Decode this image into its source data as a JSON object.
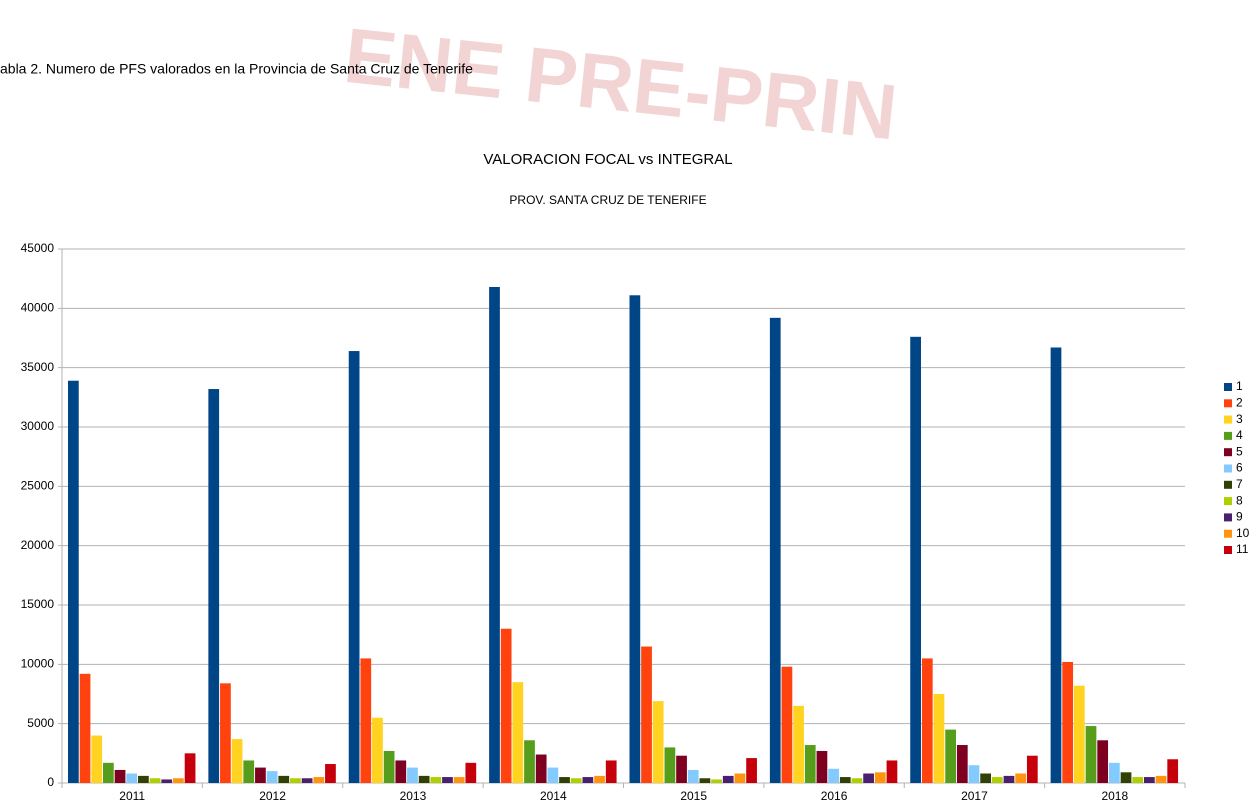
{
  "caption": "abla 2. Numero de PFS valorados en la Provincia de Santa Cruz de Tenerife",
  "watermark": "ENE PRE-PRIN",
  "chart_data": {
    "type": "bar",
    "title": "VALORACION FOCAL vs INTEGRAL",
    "subtitle": "PROV. SANTA CRUZ DE TENERIFE",
    "categories": [
      "2011",
      "2012",
      "2013",
      "2014",
      "2015",
      "2016",
      "2017",
      "2018"
    ],
    "series": [
      {
        "name": "1",
        "color": "#004586",
        "values": [
          33900,
          33200,
          36400,
          41800,
          41100,
          39200,
          37600,
          36700
        ]
      },
      {
        "name": "2",
        "color": "#ff420e",
        "values": [
          9200,
          8400,
          10500,
          13000,
          11500,
          9800,
          10500,
          10200
        ]
      },
      {
        "name": "3",
        "color": "#ffd320",
        "values": [
          4000,
          3700,
          5500,
          8500,
          6900,
          6500,
          7500,
          8200
        ]
      },
      {
        "name": "4",
        "color": "#579d1c",
        "values": [
          1700,
          1900,
          2700,
          3600,
          3000,
          3200,
          4500,
          4800
        ]
      },
      {
        "name": "5",
        "color": "#7e0021",
        "values": [
          1100,
          1300,
          1900,
          2400,
          2300,
          2700,
          3200,
          3600
        ]
      },
      {
        "name": "6",
        "color": "#83caff",
        "values": [
          800,
          1000,
          1300,
          1300,
          1100,
          1200,
          1500,
          1700
        ]
      },
      {
        "name": "7",
        "color": "#314004",
        "values": [
          600,
          600,
          600,
          500,
          400,
          500,
          800,
          900
        ]
      },
      {
        "name": "8",
        "color": "#aecf00",
        "values": [
          400,
          400,
          500,
          400,
          300,
          400,
          500,
          500
        ]
      },
      {
        "name": "9",
        "color": "#4b1f6f",
        "values": [
          300,
          400,
          500,
          500,
          600,
          800,
          600,
          500
        ]
      },
      {
        "name": "10",
        "color": "#ff950e",
        "values": [
          400,
          500,
          500,
          600,
          800,
          900,
          800,
          600
        ]
      },
      {
        "name": "11",
        "color": "#c5000b",
        "values": [
          2500,
          1600,
          1700,
          1900,
          2100,
          1900,
          2300,
          2000
        ]
      }
    ],
    "ylim": [
      0,
      45000
    ],
    "yticks": [
      0,
      5000,
      10000,
      15000,
      20000,
      25000,
      30000,
      35000,
      40000,
      45000
    ],
    "grid": true,
    "legend": "right"
  }
}
